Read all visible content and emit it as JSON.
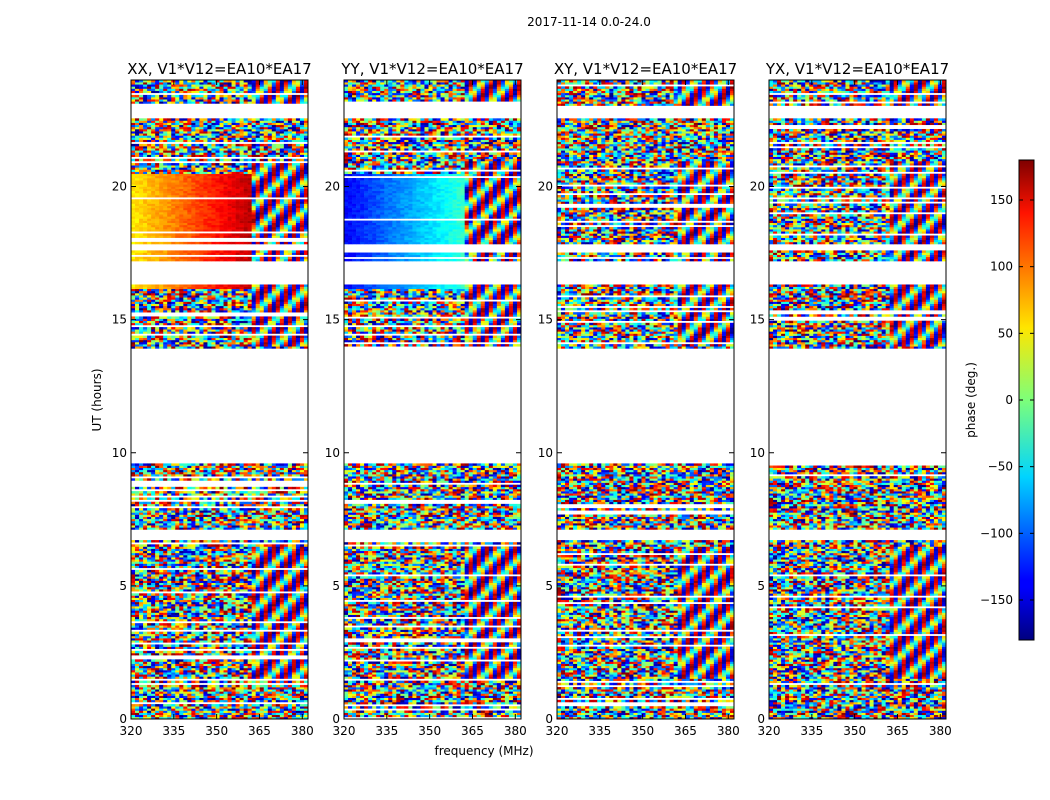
{
  "chart_data": {
    "type": "heatmap",
    "suptitle": "2017-11-14 0.0-24.0",
    "xlabel": "frequency (MHz)",
    "ylabel": "UT (hours)",
    "xlim": [
      320,
      382
    ],
    "ylim": [
      0,
      24
    ],
    "xticks": [
      320,
      335,
      350,
      365,
      380
    ],
    "yticks": [
      0,
      5,
      10,
      15,
      20
    ],
    "panels": [
      {
        "title": "XX, V1*V12=EA10*EA17",
        "pol": "XX"
      },
      {
        "title": "YY, V1*V12=EA10*EA17",
        "pol": "YY"
      },
      {
        "title": "XY, V1*V12=EA10*EA17",
        "pol": "XY"
      },
      {
        "title": "YX, V1*V12=EA10*EA17",
        "pol": "YX"
      }
    ],
    "colorbar": {
      "label": "phase (deg.)",
      "range": [
        -180,
        180
      ],
      "ticks": [
        150,
        100,
        50,
        0,
        -50,
        -100,
        -150
      ],
      "tick_labels": [
        "150",
        "100",
        "50",
        "0",
        "−50",
        "−100",
        "−150"
      ],
      "colormap": "jet"
    },
    "data_gaps_ut": [
      [
        22.6,
        23.0
      ],
      [
        17.6,
        17.8
      ],
      [
        16.3,
        17.2
      ],
      [
        9.6,
        13.9
      ],
      [
        6.7,
        7.1
      ]
    ]
  }
}
